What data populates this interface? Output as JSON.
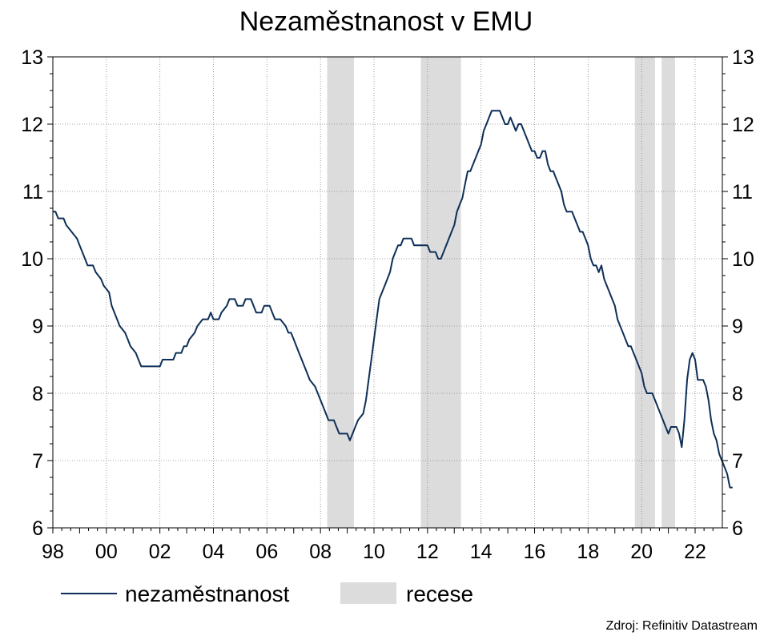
{
  "chart_data": {
    "type": "line",
    "title": "Nezaměstnanost v EMU",
    "xlabel": "",
    "ylabel": "",
    "xlim": [
      1998.0,
      2022.67
    ],
    "ylim": [
      6,
      13
    ],
    "y_ticks": [
      6,
      7,
      8,
      9,
      10,
      11,
      12,
      13
    ],
    "x_ticks": [
      {
        "value": 1998,
        "label": "98"
      },
      {
        "value": 2000,
        "label": "00"
      },
      {
        "value": 2002,
        "label": "02"
      },
      {
        "value": 2004,
        "label": "04"
      },
      {
        "value": 2006,
        "label": "06"
      },
      {
        "value": 2008,
        "label": "08"
      },
      {
        "value": 2010,
        "label": "10"
      },
      {
        "value": 2012,
        "label": "12"
      },
      {
        "value": 2014,
        "label": "14"
      },
      {
        "value": 2016,
        "label": "16"
      },
      {
        "value": 2018,
        "label": "18"
      },
      {
        "value": 2020,
        "label": "20"
      },
      {
        "value": 2022,
        "label": "22"
      }
    ],
    "grid": true,
    "legend_position": "bottom",
    "series": [
      {
        "name": "nezaměstnanost",
        "color": "#0d2f57",
        "points": [
          [
            1998.0,
            10.7
          ],
          [
            1998.1,
            10.7
          ],
          [
            1998.2,
            10.6
          ],
          [
            1998.4,
            10.6
          ],
          [
            1998.5,
            10.5
          ],
          [
            1998.7,
            10.4
          ],
          [
            1998.9,
            10.3
          ],
          [
            1999.0,
            10.2
          ],
          [
            1999.2,
            10.0
          ],
          [
            1999.3,
            9.9
          ],
          [
            1999.5,
            9.9
          ],
          [
            1999.6,
            9.8
          ],
          [
            1999.8,
            9.7
          ],
          [
            1999.9,
            9.6
          ],
          [
            2000.1,
            9.5
          ],
          [
            2000.2,
            9.3
          ],
          [
            2000.4,
            9.1
          ],
          [
            2000.5,
            9.0
          ],
          [
            2000.7,
            8.9
          ],
          [
            2000.8,
            8.8
          ],
          [
            2000.9,
            8.7
          ],
          [
            2001.1,
            8.6
          ],
          [
            2001.2,
            8.5
          ],
          [
            2001.3,
            8.4
          ],
          [
            2001.6,
            8.4
          ],
          [
            2001.9,
            8.4
          ],
          [
            2002.0,
            8.4
          ],
          [
            2002.1,
            8.5
          ],
          [
            2002.3,
            8.5
          ],
          [
            2002.5,
            8.5
          ],
          [
            2002.6,
            8.6
          ],
          [
            2002.8,
            8.6
          ],
          [
            2002.9,
            8.7
          ],
          [
            2003.0,
            8.7
          ],
          [
            2003.1,
            8.8
          ],
          [
            2003.3,
            8.9
          ],
          [
            2003.4,
            9.0
          ],
          [
            2003.6,
            9.1
          ],
          [
            2003.8,
            9.1
          ],
          [
            2003.9,
            9.2
          ],
          [
            2004.0,
            9.1
          ],
          [
            2004.2,
            9.1
          ],
          [
            2004.3,
            9.2
          ],
          [
            2004.5,
            9.3
          ],
          [
            2004.6,
            9.4
          ],
          [
            2004.8,
            9.4
          ],
          [
            2004.9,
            9.3
          ],
          [
            2005.1,
            9.3
          ],
          [
            2005.2,
            9.4
          ],
          [
            2005.4,
            9.4
          ],
          [
            2005.5,
            9.3
          ],
          [
            2005.6,
            9.2
          ],
          [
            2005.8,
            9.2
          ],
          [
            2005.9,
            9.3
          ],
          [
            2006.1,
            9.3
          ],
          [
            2006.2,
            9.2
          ],
          [
            2006.3,
            9.1
          ],
          [
            2006.5,
            9.1
          ],
          [
            2006.7,
            9.0
          ],
          [
            2006.8,
            8.9
          ],
          [
            2006.9,
            8.9
          ],
          [
            2007.0,
            8.8
          ],
          [
            2007.2,
            8.6
          ],
          [
            2007.3,
            8.5
          ],
          [
            2007.5,
            8.3
          ],
          [
            2007.6,
            8.2
          ],
          [
            2007.8,
            8.1
          ],
          [
            2007.9,
            8.0
          ],
          [
            2008.0,
            7.9
          ],
          [
            2008.2,
            7.7
          ],
          [
            2008.3,
            7.6
          ],
          [
            2008.5,
            7.6
          ],
          [
            2008.6,
            7.5
          ],
          [
            2008.7,
            7.4
          ],
          [
            2009.0,
            7.4
          ],
          [
            2009.1,
            7.3
          ],
          [
            2009.2,
            7.4
          ],
          [
            2009.3,
            7.5
          ],
          [
            2009.4,
            7.6
          ],
          [
            2009.6,
            7.7
          ],
          [
            2009.7,
            7.9
          ],
          [
            2009.8,
            8.2
          ],
          [
            2009.9,
            8.5
          ],
          [
            2010.0,
            8.8
          ],
          [
            2010.1,
            9.1
          ],
          [
            2010.2,
            9.4
          ],
          [
            2010.4,
            9.6
          ],
          [
            2010.5,
            9.7
          ],
          [
            2010.6,
            9.8
          ],
          [
            2010.7,
            10.0
          ],
          [
            2010.8,
            10.1
          ],
          [
            2010.9,
            10.2
          ],
          [
            2011.0,
            10.2
          ],
          [
            2011.1,
            10.3
          ],
          [
            2011.3,
            10.3
          ],
          [
            2011.4,
            10.3
          ],
          [
            2011.5,
            10.2
          ],
          [
            2011.7,
            10.2
          ],
          [
            2011.8,
            10.2
          ],
          [
            2012.0,
            10.2
          ],
          [
            2012.1,
            10.1
          ],
          [
            2012.3,
            10.1
          ],
          [
            2012.4,
            10.0
          ],
          [
            2012.5,
            10.0
          ],
          [
            2012.6,
            10.1
          ],
          [
            2012.7,
            10.2
          ],
          [
            2012.9,
            10.4
          ],
          [
            2013.0,
            10.5
          ],
          [
            2013.1,
            10.7
          ],
          [
            2013.2,
            10.8
          ],
          [
            2013.3,
            10.9
          ],
          [
            2013.4,
            11.1
          ],
          [
            2013.5,
            11.3
          ],
          [
            2013.6,
            11.3
          ],
          [
            2013.7,
            11.4
          ],
          [
            2013.8,
            11.5
          ],
          [
            2013.9,
            11.6
          ],
          [
            2014.0,
            11.7
          ],
          [
            2014.1,
            11.9
          ],
          [
            2014.2,
            12.0
          ],
          [
            2014.3,
            12.1
          ],
          [
            2014.4,
            12.2
          ],
          [
            2014.6,
            12.2
          ],
          [
            2014.7,
            12.2
          ],
          [
            2014.8,
            12.1
          ],
          [
            2014.9,
            12.0
          ],
          [
            2015.0,
            12.0
          ],
          [
            2015.1,
            12.1
          ],
          [
            2015.2,
            12.0
          ],
          [
            2015.3,
            11.9
          ],
          [
            2015.4,
            12.0
          ],
          [
            2015.5,
            12.0
          ],
          [
            2015.6,
            11.9
          ],
          [
            2015.7,
            11.8
          ],
          [
            2015.8,
            11.7
          ],
          [
            2015.9,
            11.6
          ],
          [
            2016.0,
            11.6
          ],
          [
            2016.1,
            11.5
          ],
          [
            2016.2,
            11.5
          ],
          [
            2016.3,
            11.6
          ],
          [
            2016.4,
            11.6
          ],
          [
            2016.5,
            11.4
          ],
          [
            2016.6,
            11.3
          ],
          [
            2016.7,
            11.3
          ],
          [
            2016.8,
            11.2
          ],
          [
            2016.9,
            11.1
          ],
          [
            2017.0,
            11.0
          ],
          [
            2017.1,
            10.8
          ],
          [
            2017.2,
            10.7
          ],
          [
            2017.4,
            10.7
          ],
          [
            2017.5,
            10.6
          ],
          [
            2017.6,
            10.5
          ],
          [
            2017.7,
            10.4
          ],
          [
            2017.8,
            10.4
          ],
          [
            2017.9,
            10.3
          ],
          [
            2018.0,
            10.2
          ],
          [
            2018.1,
            10.0
          ],
          [
            2018.2,
            9.9
          ],
          [
            2018.3,
            9.9
          ],
          [
            2018.4,
            9.8
          ],
          [
            2018.5,
            9.9
          ],
          [
            2018.6,
            9.7
          ],
          [
            2018.7,
            9.6
          ],
          [
            2018.8,
            9.5
          ],
          [
            2018.9,
            9.4
          ],
          [
            2019.0,
            9.3
          ],
          [
            2019.1,
            9.1
          ],
          [
            2019.2,
            9.0
          ],
          [
            2019.3,
            8.9
          ],
          [
            2019.4,
            8.8
          ],
          [
            2019.5,
            8.7
          ],
          [
            2019.6,
            8.7
          ],
          [
            2019.7,
            8.6
          ],
          [
            2019.8,
            8.5
          ],
          [
            2019.9,
            8.4
          ],
          [
            2020.0,
            8.3
          ],
          [
            2020.1,
            8.1
          ],
          [
            2020.2,
            8.0
          ],
          [
            2020.4,
            8.0
          ],
          [
            2020.5,
            7.9
          ],
          [
            2020.6,
            7.8
          ],
          [
            2020.7,
            7.7
          ],
          [
            2020.8,
            7.6
          ],
          [
            2020.9,
            7.5
          ],
          [
            2021.0,
            7.4
          ],
          [
            2021.1,
            7.5
          ],
          [
            2021.2,
            7.5
          ],
          [
            2021.3,
            7.5
          ],
          [
            2021.4,
            7.4
          ],
          [
            2021.5,
            7.2
          ],
          [
            2021.6,
            7.6
          ],
          [
            2021.7,
            8.2
          ],
          [
            2021.8,
            8.5
          ],
          [
            2021.9,
            8.6
          ],
          [
            2022.0,
            8.5
          ],
          [
            2022.1,
            8.2
          ],
          [
            2022.2,
            8.2
          ],
          [
            2022.3,
            8.2
          ],
          [
            2022.4,
            8.1
          ],
          [
            2022.5,
            7.9
          ],
          [
            2022.6,
            7.6
          ],
          [
            2022.7,
            7.4
          ],
          [
            2022.8,
            7.3
          ],
          [
            2022.9,
            7.1
          ],
          [
            2023.0,
            7.0
          ],
          [
            2023.1,
            6.9
          ],
          [
            2023.2,
            6.8
          ],
          [
            2023.3,
            6.6
          ],
          [
            2023.4,
            6.6
          ]
        ]
      },
      {
        "name": "recese",
        "color": "#dcdcdc",
        "type": "band",
        "ranges": [
          [
            2008.25,
            2009.25
          ],
          [
            2011.75,
            2013.25
          ],
          [
            2019.75,
            2020.5
          ],
          [
            2020.75,
            2021.25
          ]
        ]
      }
    ],
    "source": "Zdroj: Refinitiv Datastream"
  }
}
